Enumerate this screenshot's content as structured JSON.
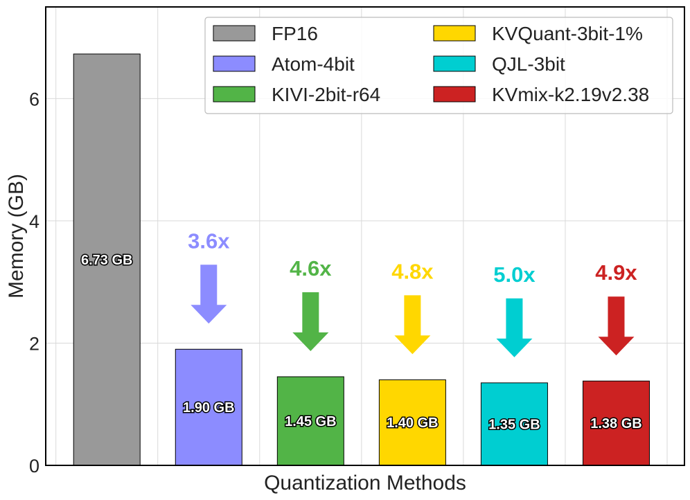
{
  "chart_data": {
    "type": "bar",
    "title": "",
    "xlabel": "Quantization Methods",
    "ylabel": "Memory (GB)",
    "ylim": [
      0,
      7.5
    ],
    "yticks": [
      0,
      2,
      4,
      6
    ],
    "ytick_labels": [
      "0",
      "2",
      "4",
      "6"
    ],
    "grid": true,
    "legend_position": "top-right",
    "categories": [
      "FP16",
      "Atom-4bit",
      "KIVI-2bit-r64",
      "KVQuant-3bit-1%",
      "QJL-3bit",
      "KVmix-k2.19v2.38"
    ],
    "values": [
      6.73,
      1.9,
      1.45,
      1.4,
      1.35,
      1.38
    ],
    "value_labels": [
      "6.73 GB",
      "1.90 GB",
      "1.45 GB",
      "1.40 GB",
      "1.35 GB",
      "1.38 GB"
    ],
    "colors": [
      "#999999",
      "#8c8cff",
      "#52b447",
      "#ffd700",
      "#00ced1",
      "#cc2222"
    ],
    "reductions": [
      {
        "category": "Atom-4bit",
        "label": "3.6x"
      },
      {
        "category": "KIVI-2bit-r64",
        "label": "4.6x"
      },
      {
        "category": "KVQuant-3bit-1%",
        "label": "4.8x"
      },
      {
        "category": "QJL-3bit",
        "label": "5.0x"
      },
      {
        "category": "KVmix-k2.19v2.38",
        "label": "4.9x"
      }
    ]
  }
}
